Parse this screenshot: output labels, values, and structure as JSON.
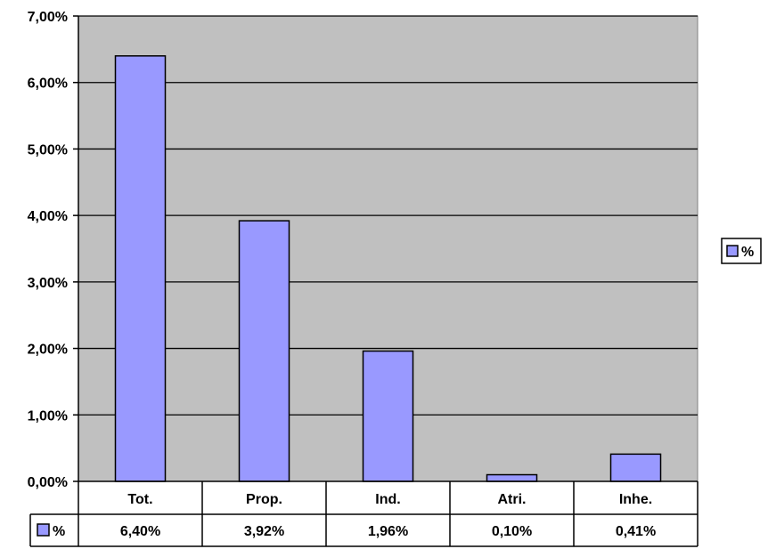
{
  "chart_data": {
    "type": "bar",
    "categories": [
      "Tot.",
      "Prop.",
      "Ind.",
      "Atri.",
      "Inhe."
    ],
    "series": [
      {
        "name": "%",
        "values": [
          6.4,
          3.92,
          1.96,
          0.1,
          0.41
        ]
      }
    ],
    "value_labels": [
      "6,40%",
      "3,92%",
      "1,96%",
      "0,10%",
      "0,41%"
    ],
    "y_ticks": [
      "0,00%",
      "1,00%",
      "2,00%",
      "3,00%",
      "4,00%",
      "5,00%",
      "6,00%",
      "7,00%"
    ],
    "ylim": [
      0,
      7
    ],
    "grid": true,
    "legend_position": "right",
    "data_table": true,
    "title": "",
    "xlabel": "",
    "ylabel": ""
  },
  "colors": {
    "bar_fill": "#9999ff",
    "plot_background": "#c0c0c0",
    "gridline": "#000000"
  }
}
